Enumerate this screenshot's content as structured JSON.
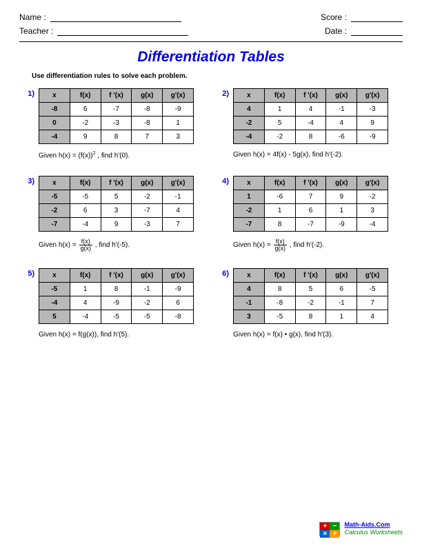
{
  "header": {
    "name_label": "Name :",
    "teacher_label": "Teacher :",
    "score_label": "Score :",
    "date_label": "Date :"
  },
  "title": "Differentiation Tables",
  "instructions": "Use differentiation rules to solve each problem.",
  "columns": [
    "x",
    "f(x)",
    "f '(x)",
    "g(x)",
    "g'(x)"
  ],
  "colors": {
    "title_color": "#0000ee",
    "problem_number_color": "#0000ee",
    "table_header_bg": "#b8b8b8",
    "border_color": "#000000",
    "background": "#ffffff"
  },
  "typography": {
    "title_fontsize": 21,
    "body_fontsize": 11,
    "table_fontsize": 10
  },
  "problems": [
    {
      "num": "1)",
      "rows": [
        [
          "-8",
          "6",
          "-7",
          "-8",
          "-9"
        ],
        [
          "0",
          "-2",
          "-3",
          "-8",
          "1"
        ],
        [
          "-4",
          "9",
          "8",
          "7",
          "3"
        ]
      ],
      "given_prefix": "Given h(x) = (f(x))",
      "given_exp": "2",
      "given_suffix": " , find h'(0).",
      "type": "power"
    },
    {
      "num": "2)",
      "rows": [
        [
          "4",
          "1",
          "4",
          "-1",
          "-3"
        ],
        [
          "-2",
          "5",
          "-4",
          "4",
          "9"
        ],
        [
          "-4",
          "-2",
          "8",
          "-6",
          "-9"
        ]
      ],
      "given": "Given h(x) = 4f(x) - 5g(x), find h'(-2).",
      "type": "linear"
    },
    {
      "num": "3)",
      "rows": [
        [
          "-5",
          "-5",
          "5",
          "-2",
          "-1"
        ],
        [
          "-2",
          "6",
          "3",
          "-7",
          "4"
        ],
        [
          "-7",
          "-4",
          "9",
          "-3",
          "7"
        ]
      ],
      "given_prefix": "Given h(x) = ",
      "frac_num": "f(x)",
      "frac_den": "g(x)",
      "given_suffix": " , find h'(-5).",
      "type": "quotient"
    },
    {
      "num": "4)",
      "rows": [
        [
          "1",
          "-6",
          "7",
          "9",
          "-2"
        ],
        [
          "-2",
          "1",
          "6",
          "1",
          "3"
        ],
        [
          "-7",
          "8",
          "-7",
          "-9",
          "-4"
        ]
      ],
      "given_prefix": "Given h(x) = ",
      "frac_num": "f(x)",
      "frac_den": "g(x)",
      "given_suffix": " , find h'(-2).",
      "type": "quotient"
    },
    {
      "num": "5)",
      "rows": [
        [
          "-5",
          "1",
          "8",
          "-1",
          "-9"
        ],
        [
          "-4",
          "4",
          "-9",
          "-2",
          "6"
        ],
        [
          "5",
          "-4",
          "-5",
          "-5",
          "-8"
        ]
      ],
      "given": "Given h(x) = f(g(x)), find h'(5).",
      "type": "chain"
    },
    {
      "num": "6)",
      "rows": [
        [
          "4",
          "8",
          "5",
          "6",
          "-5"
        ],
        [
          "-1",
          "-8",
          "-2",
          "-1",
          "7"
        ],
        [
          "3",
          "-5",
          "8",
          "1",
          "4"
        ]
      ],
      "given": "Given h(x) = f(x) • g(x), find h'(3).",
      "type": "product"
    }
  ],
  "footer": {
    "site": "Math-Aids.Com",
    "subtitle": "Calculus Worksheets",
    "logo_colors": [
      "#cc0000",
      "#009900",
      "#0066cc",
      "#ff9900"
    ],
    "logo_symbols": [
      "+",
      "−",
      "×",
      "÷"
    ]
  }
}
